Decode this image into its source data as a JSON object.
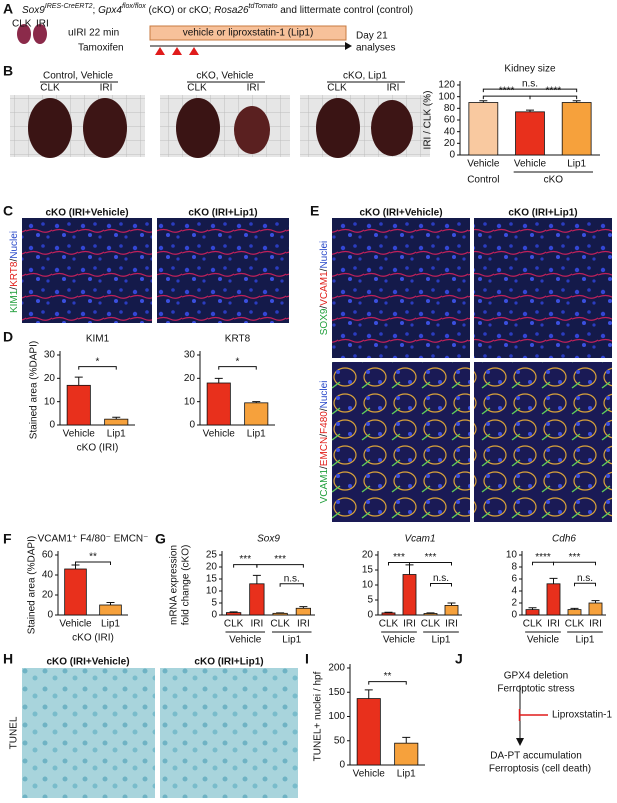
{
  "panels": [
    "A",
    "B",
    "C",
    "D",
    "E",
    "F",
    "G",
    "H",
    "I",
    "J"
  ],
  "a": {
    "header": [
      {
        "text": "Sox9",
        "style": "italic"
      },
      {
        "text": "IRES-CreERT2",
        "style": "sup"
      },
      {
        "text": "; "
      },
      {
        "text": "Gpx4",
        "style": "italic"
      },
      {
        "text": "flox/flox",
        "style": "sup"
      },
      {
        "text": " (cKO) or cKO; "
      },
      {
        "text": "Rosa26",
        "style": "italic"
      },
      {
        "text": "tdTomato",
        "style": "sup"
      },
      {
        "text": " and littermate control (control)"
      }
    ],
    "clk": "CLK",
    "iri": "IRI",
    "uiri": "uIRI 22 min",
    "tamoxifen": "Tamoxifen",
    "treatment": "vehicle or liproxstatin-1 (Lip1)",
    "day": "Day 21",
    "analyses": "analyses"
  },
  "b": {
    "photos": [
      {
        "title": "Control, Vehicle",
        "clk": "CLK",
        "iri": "IRI"
      },
      {
        "title": "cKO, Vehicle",
        "clk": "CLK",
        "iri": "IRI"
      },
      {
        "title": "cKO, Lip1",
        "clk": "CLK",
        "iri": "IRI"
      }
    ]
  },
  "c": {
    "headers": [
      "cKO (IRI+Vehicle)",
      "cKO (IRI+Lip1)"
    ],
    "separator": "/",
    "stain": [
      {
        "label": "KIM1",
        "color": "#1f9e3a"
      },
      {
        "label": "KRT8",
        "color": "#e0201b"
      },
      {
        "label": "Nuclei",
        "color": "#2747c9"
      }
    ]
  },
  "e": {
    "headers": [
      "cKO (IRI+Vehicle)",
      "cKO (IRI+Lip1)"
    ],
    "separator": "/",
    "stain_top": [
      {
        "label": "SOX9",
        "color": "#1f9e3a"
      },
      {
        "label": "VCAM1",
        "color": "#e0201b"
      },
      {
        "label": "Nuclei",
        "color": "#2747c9"
      }
    ],
    "stain_bottom": [
      {
        "label": "VCAM1",
        "color": "#1f9e3a"
      },
      {
        "label": "EMCN",
        "color": "#e0201b"
      },
      {
        "label": "F480",
        "color": "#e0201b"
      },
      {
        "label": "Nuclei",
        "color": "#2747c9"
      }
    ]
  },
  "g_ylabel": [
    "mRNA expression",
    "fold change (cKO)"
  ],
  "h": {
    "headers": [
      "cKO (IRI+Vehicle)",
      "cKO (IRI+Lip1)"
    ],
    "stain": "TUNEL"
  },
  "j": {
    "lines": [
      "GPX4 deletion",
      "Ferroptotic stress"
    ],
    "inhibitor": "Liproxstatin-1",
    "outcome": [
      "DA-PT accumulation",
      "Ferroptosis (cell death)"
    ]
  },
  "chart_data": [
    {
      "type": "bar",
      "title": "Kidney size",
      "ylabel": "IRI / CLK (%)",
      "categories": [
        "Vehicle",
        "Vehicle",
        "Lip1"
      ],
      "groups": [
        "Control",
        "cKO"
      ],
      "values": [
        90,
        74,
        90
      ],
      "errors": [
        3,
        3,
        3
      ],
      "colors": [
        "#f9c9a0",
        "#e8301c",
        "#f6a13c"
      ],
      "ylim": [
        0,
        120
      ],
      "yticks": [
        0,
        20,
        40,
        60,
        80,
        100,
        120
      ],
      "significance": [
        "****",
        "n.s.",
        "****"
      ]
    },
    {
      "type": "bar",
      "title": "KIM1",
      "ylabel": "Stained area (%DAPI)",
      "xlabel": "cKO (IRI)",
      "categories": [
        "Vehicle",
        "Lip1"
      ],
      "values": [
        17,
        2.5
      ],
      "errors": [
        3.5,
        0.8
      ],
      "colors": [
        "#e8301c",
        "#f6a13c"
      ],
      "ylim": [
        0,
        30
      ],
      "yticks": [
        0,
        10,
        20,
        30
      ],
      "significance": [
        "*"
      ]
    },
    {
      "type": "bar",
      "title": "KRT8",
      "categories": [
        "Vehicle",
        "Lip1"
      ],
      "values": [
        18,
        9.5
      ],
      "errors": [
        2,
        0.5
      ],
      "colors": [
        "#e8301c",
        "#f6a13c"
      ],
      "ylim": [
        0,
        30
      ],
      "yticks": [
        0,
        10,
        20,
        30
      ],
      "significance": [
        "*"
      ]
    },
    {
      "type": "bar",
      "title": "VCAM1⁺ F4/80⁻ EMCN⁻",
      "ylabel": "Stained area (%DAPI)",
      "xlabel": "cKO (IRI)",
      "categories": [
        "Vehicle",
        "Lip1"
      ],
      "values": [
        46,
        10
      ],
      "errors": [
        4,
        2.5
      ],
      "colors": [
        "#e8301c",
        "#f6a13c"
      ],
      "ylim": [
        0,
        60
      ],
      "yticks": [
        0,
        20,
        40,
        60
      ],
      "significance": [
        "**"
      ]
    },
    {
      "type": "bar",
      "title": "Sox9",
      "categories": [
        "CLK",
        "IRI",
        "CLK",
        "IRI"
      ],
      "groups": [
        "Vehicle",
        "Lip1"
      ],
      "values": [
        1,
        13,
        0.7,
        2.8
      ],
      "errors": [
        0.3,
        3.5,
        0.2,
        0.7
      ],
      "colors": [
        "#e8301c",
        "#e8301c",
        "#f6a13c",
        "#f6a13c"
      ],
      "ylim": [
        0,
        25
      ],
      "yticks": [
        0,
        5,
        10,
        15,
        20,
        25
      ],
      "significance": [
        "***",
        "***",
        "n.s."
      ]
    },
    {
      "type": "bar",
      "title": "Vcam1",
      "categories": [
        "CLK",
        "IRI",
        "CLK",
        "IRI"
      ],
      "groups": [
        "Vehicle",
        "Lip1"
      ],
      "values": [
        0.7,
        13.5,
        0.5,
        3.2
      ],
      "errors": [
        0.2,
        3.2,
        0.2,
        0.8
      ],
      "colors": [
        "#e8301c",
        "#e8301c",
        "#f6a13c",
        "#f6a13c"
      ],
      "ylim": [
        0,
        20
      ],
      "yticks": [
        0,
        5,
        10,
        15,
        20
      ],
      "significance": [
        "***",
        "***",
        "n.s."
      ]
    },
    {
      "type": "bar",
      "title": "Cdh6",
      "categories": [
        "CLK",
        "IRI",
        "CLK",
        "IRI"
      ],
      "groups": [
        "Vehicle",
        "Lip1"
      ],
      "values": [
        0.9,
        5.2,
        0.9,
        2.0
      ],
      "errors": [
        0.3,
        0.9,
        0.2,
        0.4
      ],
      "colors": [
        "#e8301c",
        "#e8301c",
        "#f6a13c",
        "#f6a13c"
      ],
      "ylim": [
        0,
        10
      ],
      "yticks": [
        0,
        2,
        4,
        6,
        8,
        10
      ],
      "significance": [
        "****",
        "***",
        "n.s."
      ]
    },
    {
      "type": "bar",
      "ylabel": "TUNEL+ nuclei / hpf",
      "categories": [
        "Vehicle",
        "Lip1"
      ],
      "values": [
        137,
        45
      ],
      "errors": [
        18,
        12
      ],
      "colors": [
        "#e8301c",
        "#f6a13c"
      ],
      "ylim": [
        0,
        200
      ],
      "yticks": [
        0,
        50,
        100,
        150,
        200
      ],
      "significance": [
        "**"
      ]
    }
  ]
}
